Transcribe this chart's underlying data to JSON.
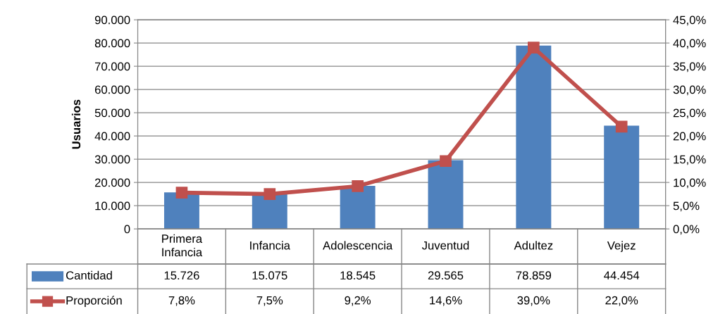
{
  "chart_data": {
    "type": "bar",
    "ylabel": "Usuarios",
    "categories": [
      "Primera\nInfancia",
      "Infancia",
      "Adolescencia",
      "Juventud",
      "Adultez",
      "Vejez"
    ],
    "series": [
      {
        "name": "Cantidad",
        "color": "#4f81bd",
        "values": [
          15726,
          15075,
          18545,
          29565,
          78859,
          44454
        ],
        "value_labels": [
          "15.726",
          "15.075",
          "18.545",
          "29.565",
          "78.859",
          "44.454"
        ]
      },
      {
        "name": "Proporción",
        "type": "line",
        "axis": "y2",
        "color": "#c0504d",
        "marker": "square",
        "values": [
          7.8,
          7.5,
          9.2,
          14.6,
          39.0,
          22.0
        ],
        "value_labels": [
          "7,8%",
          "7,5%",
          "9,2%",
          "14,6%",
          "39,0%",
          "22,0%"
        ]
      }
    ],
    "ylim": [
      0,
      90000
    ],
    "yticks": [
      0,
      {
        "value": 10000,
        "label": "10.000"
      },
      {
        "value": 20000,
        "label": "20.000"
      },
      {
        "value": 30000,
        "label": "30.000"
      },
      {
        "value": 40000,
        "label": "40.000"
      },
      {
        "value": 50000,
        "label": "50.000"
      },
      {
        "value": 60000,
        "label": "60.000"
      },
      {
        "value": 70000,
        "label": "70.000"
      },
      {
        "value": 80000,
        "label": "80.000"
      },
      {
        "value": 90000,
        "label": "90.000"
      }
    ],
    "y2lim": [
      0,
      45
    ],
    "y2ticks": [
      {
        "value": 0,
        "label": "0,0%"
      },
      {
        "value": 5,
        "label": "5,0%"
      },
      {
        "value": 10,
        "label": "10,0%"
      },
      {
        "value": 15,
        "label": "15,0%"
      },
      {
        "value": 20,
        "label": "20,0%"
      },
      {
        "value": 25,
        "label": "25,0%"
      },
      {
        "value": 30,
        "label": "30,0%"
      },
      {
        "value": 35,
        "label": "35,0%"
      },
      {
        "value": 40,
        "label": "40,0%"
      },
      {
        "value": 45,
        "label": "45,0%"
      }
    ],
    "grid": "y",
    "legend": "bottom"
  }
}
